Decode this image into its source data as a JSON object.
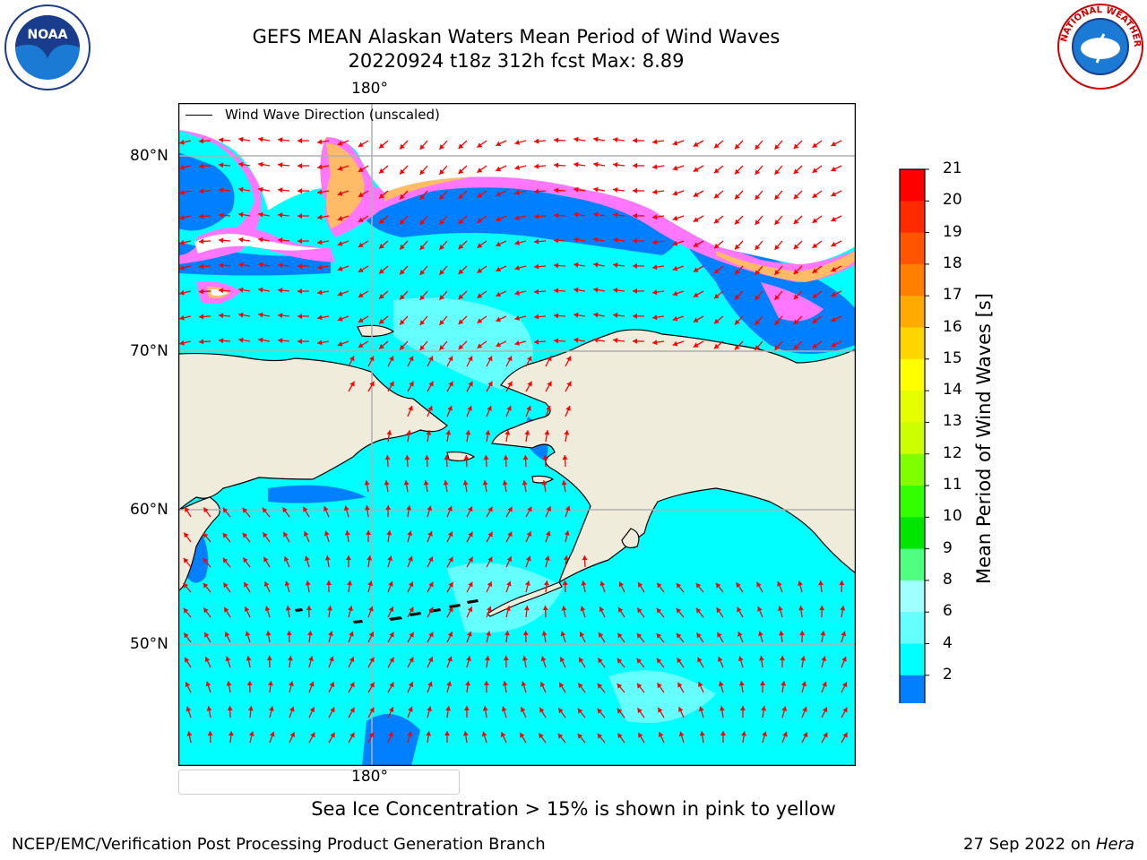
{
  "header": {
    "title_line1": "GEFS MEAN Alaskan Waters Mean Period of Wind Waves",
    "title_line2": "20220924 t18z 312h fcst   Max: 8.89"
  },
  "logos": {
    "left": "NOAA",
    "right": "NATIONAL WEATHER SERVICE"
  },
  "map": {
    "lon_label_top": "180°",
    "lon_label_bottom": "180°",
    "lat_labels": [
      "80°N",
      "70°N",
      "60°N",
      "50°N"
    ],
    "legend_label": "Wind Wave Direction (unscaled)",
    "colors": {
      "land": "#efecdc",
      "water_cyan": "#00ffff",
      "water_light": "#66ffff",
      "water_blue": "#0080ff",
      "ice_pink": "#ff77ff",
      "ice_orange": "#ffbb66",
      "arrow": "#ff0000"
    }
  },
  "colorbar": {
    "title": "Mean Period of Wind Waves [s]",
    "ticks": [
      "21",
      "20",
      "19",
      "18",
      "17",
      "16",
      "15",
      "14",
      "13",
      "12",
      "11",
      "10",
      "9",
      "8",
      "6",
      "4",
      "2"
    ],
    "colors": [
      "#ff0000",
      "#ff2a00",
      "#ff5500",
      "#ff8000",
      "#ffaa00",
      "#ffd500",
      "#ffff00",
      "#e6ff00",
      "#ccff00",
      "#80ff00",
      "#33ff00",
      "#00e600",
      "#50ff80",
      "#a0ffff",
      "#66ffff",
      "#00ffff",
      "#0080ff"
    ],
    "extend_color": "#0000ff"
  },
  "footer": {
    "ice_note": "Sea Ice Concentration > 15% is shown in pink to yellow",
    "branch": "NCEP/EMC/Verification Post Processing Product Generation Branch",
    "date": "27 Sep 2022 on ",
    "machine": "Hera"
  }
}
